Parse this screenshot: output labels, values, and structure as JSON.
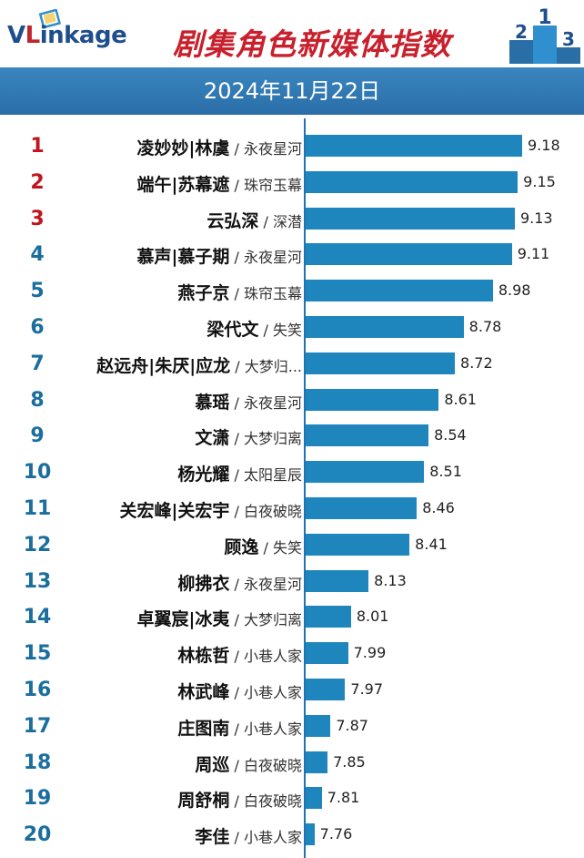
{
  "header": {
    "logo_text": "VLinkage",
    "title": "剧集角色新媒体指数",
    "date": "2024年11月22日"
  },
  "colors": {
    "bar": "#1f86bd",
    "rank_top": "#c0141f",
    "rank_rest": "#1a6e9e",
    "date_bar": "#2a7ab5",
    "title": "#c8202c"
  },
  "chart_data": {
    "type": "bar",
    "orientation": "horizontal",
    "title": "剧集角色新媒体指数",
    "subtitle": "2024年11月22日",
    "categories": [
      "凌妙妙|林虞 / 永夜星河",
      "端午|苏幕遮 / 珠帘玉幕",
      "云弘深 / 深潜",
      "慕声|慕子期 / 永夜星河",
      "燕子京 / 珠帘玉幕",
      "梁代文 / 失笑",
      "赵远舟|朱厌|应龙 / 大梦归...",
      "慕瑶 / 永夜星河",
      "文潇 / 大梦归离",
      "杨光耀 / 太阳星辰",
      "关宏峰|关宏宇 / 白夜破晓",
      "顾逸 / 失笑",
      "柳拂衣 / 永夜星河",
      "卓翼宸|冰夷 / 大梦归离",
      "林栋哲 / 小巷人家",
      "林武峰 / 小巷人家",
      "庄图南 / 小巷人家",
      "周巡 / 白夜破晓",
      "周舒桐 / 白夜破晓",
      "李佳 / 小巷人家"
    ],
    "rows": [
      {
        "rank": "1",
        "name": "凌妙妙|林虞",
        "show": "永夜星河",
        "value": 9.18,
        "value_label": "9.18"
      },
      {
        "rank": "2",
        "name": "端午|苏幕遮",
        "show": "珠帘玉幕",
        "value": 9.15,
        "value_label": "9.15"
      },
      {
        "rank": "3",
        "name": "云弘深",
        "show": "深潜",
        "value": 9.13,
        "value_label": "9.13"
      },
      {
        "rank": "4",
        "name": "慕声|慕子期",
        "show": "永夜星河",
        "value": 9.11,
        "value_label": "9.11"
      },
      {
        "rank": "5",
        "name": "燕子京",
        "show": "珠帘玉幕",
        "value": 8.98,
        "value_label": "8.98"
      },
      {
        "rank": "6",
        "name": "梁代文",
        "show": "失笑",
        "value": 8.78,
        "value_label": "8.78"
      },
      {
        "rank": "7",
        "name": "赵远舟|朱厌|应龙",
        "show": "大梦归...",
        "value": 8.72,
        "value_label": "8.72"
      },
      {
        "rank": "8",
        "name": "慕瑶",
        "show": "永夜星河",
        "value": 8.61,
        "value_label": "8.61"
      },
      {
        "rank": "9",
        "name": "文潇",
        "show": "大梦归离",
        "value": 8.54,
        "value_label": "8.54"
      },
      {
        "rank": "10",
        "name": "杨光耀",
        "show": "太阳星辰",
        "value": 8.51,
        "value_label": "8.51"
      },
      {
        "rank": "11",
        "name": "关宏峰|关宏宇",
        "show": "白夜破晓",
        "value": 8.46,
        "value_label": "8.46"
      },
      {
        "rank": "12",
        "name": "顾逸",
        "show": "失笑",
        "value": 8.41,
        "value_label": "8.41"
      },
      {
        "rank": "13",
        "name": "柳拂衣",
        "show": "永夜星河",
        "value": 8.13,
        "value_label": "8.13"
      },
      {
        "rank": "14",
        "name": "卓翼宸|冰夷",
        "show": "大梦归离",
        "value": 8.01,
        "value_label": "8.01"
      },
      {
        "rank": "15",
        "name": "林栋哲",
        "show": "小巷人家",
        "value": 7.99,
        "value_label": "7.99"
      },
      {
        "rank": "16",
        "name": "林武峰",
        "show": "小巷人家",
        "value": 7.97,
        "value_label": "7.97"
      },
      {
        "rank": "17",
        "name": "庄图南",
        "show": "小巷人家",
        "value": 7.87,
        "value_label": "7.87"
      },
      {
        "rank": "18",
        "name": "周巡",
        "show": "白夜破晓",
        "value": 7.85,
        "value_label": "7.85"
      },
      {
        "rank": "19",
        "name": "周舒桐",
        "show": "白夜破晓",
        "value": 7.81,
        "value_label": "7.81"
      },
      {
        "rank": "20",
        "name": "李佳",
        "show": "小巷人家",
        "value": 7.76,
        "value_label": "7.76"
      }
    ],
    "xlim": [
      7.7,
      9.18
    ],
    "grid": false,
    "legend": "none"
  }
}
